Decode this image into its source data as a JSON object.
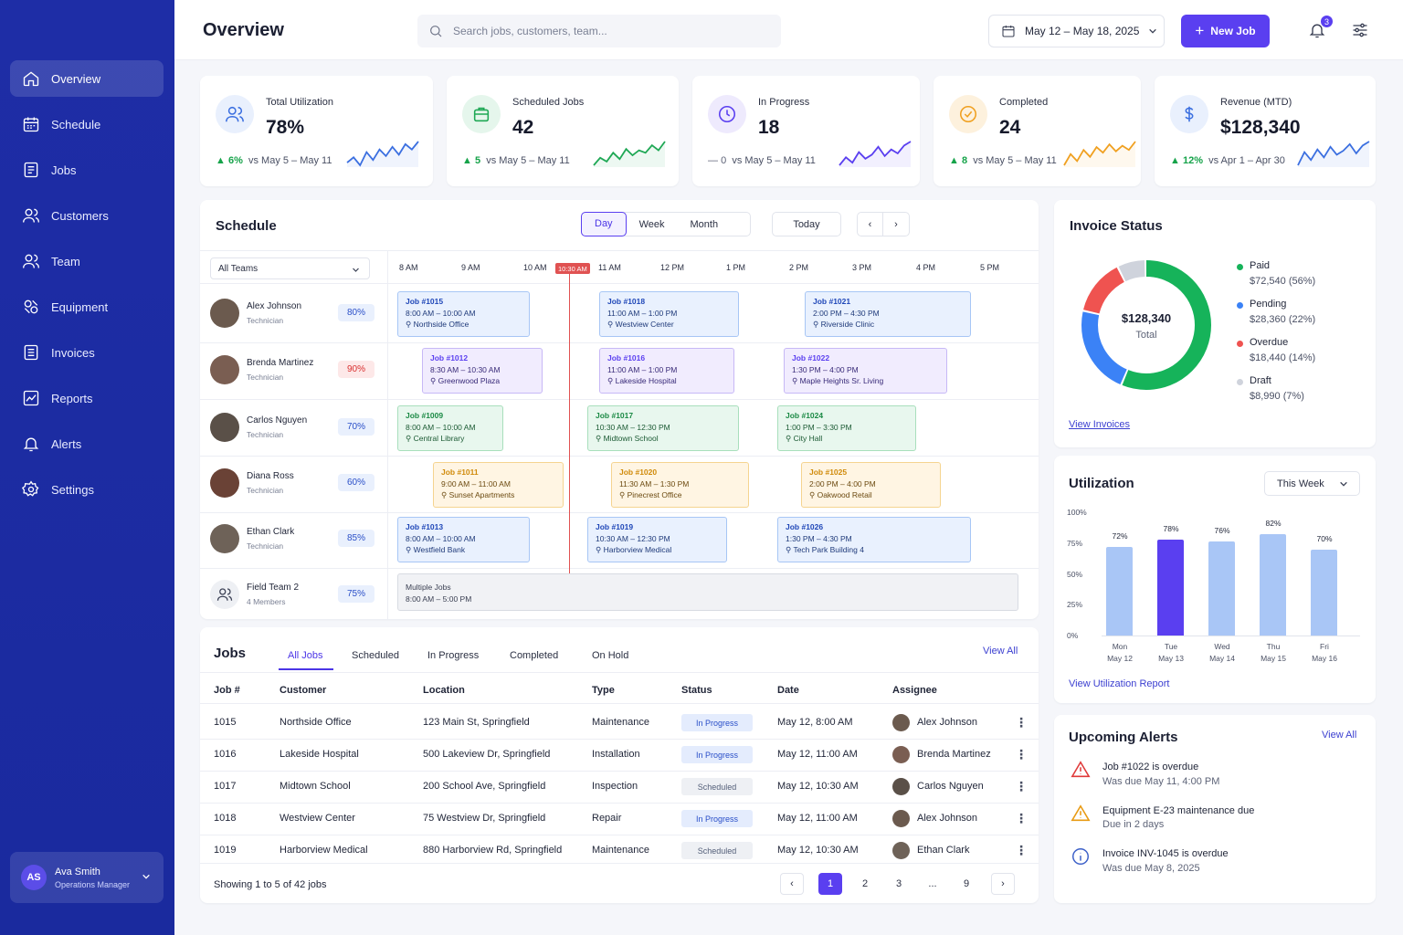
{
  "header": {
    "title": "Overview",
    "search_placeholder": "Search jobs, customers, team...",
    "date_range": "May 12 – May 18, 2025",
    "new_job_label": "New Job",
    "notification_count": "3"
  },
  "sidebar": {
    "items": [
      {
        "label": "Overview",
        "icon": "home-icon"
      },
      {
        "label": "Schedule",
        "icon": "calendar-icon"
      },
      {
        "label": "Jobs",
        "icon": "clipboard-icon"
      },
      {
        "label": "Customers",
        "icon": "users-icon"
      },
      {
        "label": "Team",
        "icon": "team-icon"
      },
      {
        "label": "Equipment",
        "icon": "tools-icon"
      },
      {
        "label": "Invoices",
        "icon": "invoice-icon"
      },
      {
        "label": "Reports",
        "icon": "chart-icon"
      },
      {
        "label": "Alerts",
        "icon": "bell-icon"
      },
      {
        "label": "Settings",
        "icon": "gear-icon"
      }
    ],
    "user": {
      "initials": "AS",
      "name": "Ava Smith",
      "role": "Operations Manager"
    }
  },
  "kpis": [
    {
      "label": "Total Utilization",
      "value": "78%",
      "delta": "6%",
      "compare": "vs May 5 – May 11",
      "trend": "up",
      "color": "#3b6fe0",
      "spark": [
        10,
        14,
        8,
        18,
        12,
        20,
        15,
        22,
        16,
        24,
        20,
        26
      ]
    },
    {
      "label": "Scheduled Jobs",
      "value": "42",
      "delta": "5",
      "compare": "vs May 5 – May 11",
      "trend": "up",
      "color": "#1fa855",
      "spark": [
        6,
        12,
        9,
        16,
        11,
        19,
        14,
        18,
        16,
        22,
        18,
        25
      ]
    },
    {
      "label": "In Progress",
      "value": "18",
      "delta": "0",
      "compare": "vs May 5 – May 11",
      "trend": "flat",
      "color": "#5a3ff0",
      "spark": [
        8,
        14,
        10,
        18,
        13,
        16,
        22,
        15,
        20,
        17,
        23,
        26
      ]
    },
    {
      "label": "Completed",
      "value": "24",
      "delta": "8",
      "compare": "vs May 5 – May 11",
      "trend": "up",
      "color": "#f0a020",
      "spark": [
        8,
        16,
        11,
        19,
        14,
        21,
        17,
        23,
        18,
        22,
        19,
        25
      ]
    },
    {
      "label": "Revenue (MTD)",
      "value": "$128,340",
      "delta": "12%",
      "compare": "vs Apr 1 – Apr 30",
      "trend": "up",
      "color": "#3b6fe0",
      "spark": [
        8,
        18,
        12,
        20,
        14,
        22,
        16,
        19,
        24,
        17,
        23,
        26
      ]
    }
  ],
  "schedule": {
    "title": "Schedule",
    "views": [
      "Day",
      "Week",
      "Month"
    ],
    "active_view": "Day",
    "today_label": "Today",
    "team_filter": "All Teams",
    "hours": [
      "8 AM",
      "9 AM",
      "10 AM",
      "11 AM",
      "12 PM",
      "1 PM",
      "2 PM",
      "3 PM",
      "4 PM",
      "5 PM"
    ],
    "now_label": "10:30 AM",
    "technicians": [
      {
        "name": "Alex Johnson",
        "role": "Technician",
        "util": "80%",
        "avatar_color": "#6b5a4e"
      },
      {
        "name": "Brenda Martinez",
        "role": "Technician",
        "util": "90%",
        "avatar_color": "#7a5e52"
      },
      {
        "name": "Carlos Nguyen",
        "role": "Technician",
        "util": "70%",
        "avatar_color": "#5a5048"
      },
      {
        "name": "Diana Ross",
        "role": "Technician",
        "util": "60%",
        "avatar_color": "#6a4236"
      },
      {
        "name": "Ethan Clark",
        "role": "Technician",
        "util": "85%",
        "avatar_color": "#6e6258"
      },
      {
        "name": "Field Team 2",
        "role": "4 Members",
        "util": "75%",
        "avatar_color": "#eef0f4"
      }
    ],
    "jobs": [
      {
        "row": 0,
        "title": "Job #1015",
        "time": "8:00 AM – 10:00 AM",
        "place": "Northside Office",
        "color": "blue"
      },
      {
        "row": 0,
        "title": "Job #1018",
        "time": "11:00 AM – 1:00 PM",
        "place": "Westview Center",
        "color": "blue"
      },
      {
        "row": 0,
        "title": "Job #1021",
        "time": "2:00 PM – 4:30 PM",
        "place": "Riverside Clinic",
        "color": "blue"
      },
      {
        "row": 1,
        "title": "Job #1012",
        "time": "8:30 AM – 10:30 AM",
        "place": "Greenwood Plaza",
        "color": "purple"
      },
      {
        "row": 1,
        "title": "Job #1016",
        "time": "11:00 AM – 1:00 PM",
        "place": "Lakeside Hospital",
        "color": "purple"
      },
      {
        "row": 1,
        "title": "Job #1022",
        "time": "1:30 PM – 4:00 PM",
        "place": "Maple Heights Sr. Living",
        "color": "purple"
      },
      {
        "row": 2,
        "title": "Job #1009",
        "time": "8:00 AM – 10:00 AM",
        "place": "Central Library",
        "color": "green"
      },
      {
        "row": 2,
        "title": "Job #1017",
        "time": "10:30 AM – 12:30 PM",
        "place": "Midtown School",
        "color": "green"
      },
      {
        "row": 2,
        "title": "Job #1024",
        "time": "1:00 PM – 3:30 PM",
        "place": "City Hall",
        "color": "green"
      },
      {
        "row": 3,
        "title": "Job #1011",
        "time": "9:00 AM – 11:00 AM",
        "place": "Sunset Apartments",
        "color": "orange"
      },
      {
        "row": 3,
        "title": "Job #1020",
        "time": "11:30 AM – 1:30 PM",
        "place": "Pinecrest Office",
        "color": "orange"
      },
      {
        "row": 3,
        "title": "Job #1025",
        "time": "2:00 PM – 4:00 PM",
        "place": "Oakwood Retail",
        "color": "orange"
      },
      {
        "row": 4,
        "title": "Job #1013",
        "time": "8:00 AM – 10:00 AM",
        "place": "Westfield Bank",
        "color": "blue"
      },
      {
        "row": 4,
        "title": "Job #1019",
        "time": "10:30 AM – 12:30 PM",
        "place": "Harborview Medical",
        "color": "blue"
      },
      {
        "row": 4,
        "title": "Job #1026",
        "time": "1:30 PM – 4:30 PM",
        "place": "Tech Park Building 4",
        "color": "blue"
      },
      {
        "row": 5,
        "title": "Multiple Jobs",
        "time": "8:00 AM – 5:00 PM",
        "place": "",
        "color": "gray"
      }
    ]
  },
  "jobs_table": {
    "title": "Jobs",
    "tabs": [
      "All Jobs",
      "Scheduled",
      "In Progress",
      "Completed",
      "On Hold"
    ],
    "view_all": "View All",
    "columns": [
      "Job #",
      "Customer",
      "Location",
      "Type",
      "Status",
      "Date",
      "Assignee"
    ],
    "rows": [
      {
        "id": "1015",
        "customer": "Northside Office",
        "location": "123 Main St, Springfield",
        "type": "Maintenance",
        "status": "In Progress",
        "date": "May 12, 8:00 AM",
        "assignee": "Alex Johnson",
        "avatar_color": "#6b5a4e"
      },
      {
        "id": "1016",
        "customer": "Lakeside Hospital",
        "location": "500 Lakeview Dr, Springfield",
        "type": "Installation",
        "status": "In Progress",
        "date": "May 12, 11:00 AM",
        "assignee": "Brenda Martinez",
        "avatar_color": "#7a5e52"
      },
      {
        "id": "1017",
        "customer": "Midtown School",
        "location": "200 School Ave, Springfield",
        "type": "Inspection",
        "status": "Scheduled",
        "date": "May 12, 10:30 AM",
        "assignee": "Carlos Nguyen",
        "avatar_color": "#5a5048"
      },
      {
        "id": "1018",
        "customer": "Westview Center",
        "location": "75 Westview Dr, Springfield",
        "type": "Repair",
        "status": "In Progress",
        "date": "May 12, 11:00 AM",
        "assignee": "Alex Johnson",
        "avatar_color": "#6b5a4e"
      },
      {
        "id": "1019",
        "customer": "Harborview Medical",
        "location": "880 Harborview Rd, Springfield",
        "type": "Maintenance",
        "status": "Scheduled",
        "date": "May 12, 10:30 AM",
        "assignee": "Ethan Clark",
        "avatar_color": "#6e6258"
      }
    ],
    "showing": "Showing 1 to 5 of 42 jobs",
    "pages": [
      "1",
      "2",
      "3",
      "...",
      "9"
    ]
  },
  "invoice": {
    "title": "Invoice Status",
    "total": "$128,340",
    "total_label": "Total",
    "segments": [
      {
        "name": "Paid",
        "value": "$72,540 (56%)",
        "pct": 56,
        "color": "#16b35a"
      },
      {
        "name": "Pending",
        "value": "$28,360 (22%)",
        "pct": 22,
        "color": "#3b82f6"
      },
      {
        "name": "Overdue",
        "value": "$18,440 (14%)",
        "pct": 14,
        "color": "#ef5350"
      },
      {
        "name": "Draft",
        "value": "$8,990 (7%)",
        "pct": 7,
        "color": "#cfd3dc"
      }
    ],
    "link": "View Invoices"
  },
  "utilization": {
    "title": "Utilization",
    "period": "This Week",
    "link": "View Utilization Report",
    "chart_data": {
      "type": "bar",
      "categories": [
        "Mon",
        "Tue",
        "Wed",
        "Thu",
        "Fri"
      ],
      "dates": [
        "May 12",
        "May 13",
        "May 14",
        "May 15",
        "May 16"
      ],
      "values": [
        72,
        78,
        76,
        82,
        70
      ],
      "labels": [
        "72%",
        "78%",
        "76%",
        "82%",
        "70%"
      ],
      "highlight_index": 1,
      "yticks": [
        "100%",
        "75%",
        "50%",
        "25%",
        "0%"
      ],
      "ylim": [
        0,
        100
      ]
    }
  },
  "alerts": {
    "title": "Upcoming Alerts",
    "view_all": "View All",
    "items": [
      {
        "title": "Job #1022 is overdue",
        "sub": "Was due May 11, 4:00 PM",
        "level": "danger"
      },
      {
        "title": "Equipment E-23 maintenance due",
        "sub": "Due in 2 days",
        "level": "warning"
      },
      {
        "title": "Invoice INV-1045 is overdue",
        "sub": "Was due May 8, 2025",
        "level": "info"
      }
    ]
  }
}
